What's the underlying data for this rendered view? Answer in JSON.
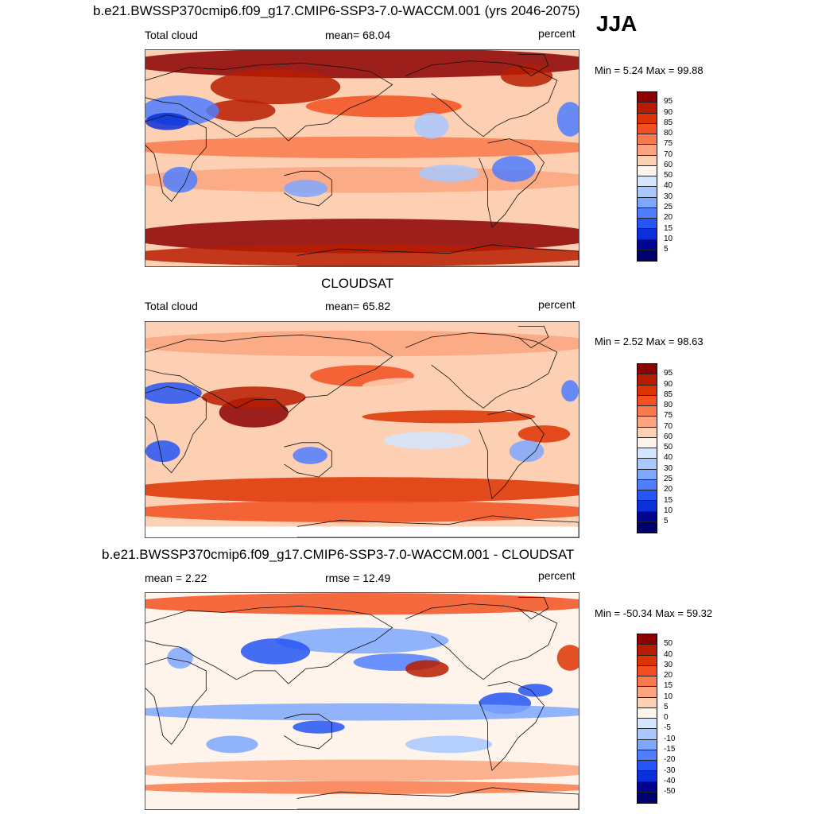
{
  "figure": {
    "season": "JJA",
    "units": "percent",
    "panels": [
      {
        "title": "b.e21.BWSSP370cmip6.f09_g17.CMIP6-SSP3-7.0-WACCM.001 (yrs 2046-2075)",
        "left_label": "Total cloud",
        "mid_label": "mean=  68.04",
        "right_label": "percent",
        "minmax": "Min =   5.24 Max =  99.88",
        "levels": [
          "95",
          "90",
          "85",
          "80",
          "75",
          "70",
          "60",
          "50",
          "40",
          "30",
          "25",
          "20",
          "15",
          "10",
          "5"
        ],
        "colors": [
          "#8b0000",
          "#b81c00",
          "#dd3300",
          "#f25020",
          "#f97a4c",
          "#fba47f",
          "#fdd0b4",
          "#fff4ec",
          "#d3e6ff",
          "#a8c8ff",
          "#7ea7ff",
          "#4f7eff",
          "#2455f5",
          "#0b2fd8",
          "#02068e",
          "#00006e"
        ],
        "cmap": "pos"
      },
      {
        "title": "CLOUDSAT",
        "left_label": "Total cloud",
        "mid_label": "mean=  65.82",
        "right_label": "percent",
        "minmax": "Min =   2.52 Max =  98.63",
        "levels": [
          "95",
          "90",
          "85",
          "80",
          "75",
          "70",
          "60",
          "50",
          "40",
          "30",
          "25",
          "20",
          "15",
          "10",
          "5"
        ],
        "colors": [
          "#8b0000",
          "#b81c00",
          "#dd3300",
          "#f25020",
          "#f97a4c",
          "#fba47f",
          "#fdd0b4",
          "#fff4ec",
          "#d3e6ff",
          "#a8c8ff",
          "#7ea7ff",
          "#4f7eff",
          "#2455f5",
          "#0b2fd8",
          "#02068e",
          "#00006e"
        ],
        "cmap": "pos"
      },
      {
        "title": "b.e21.BWSSP370cmip6.f09_g17.CMIP6-SSP3-7.0-WACCM.001 - CLOUDSAT",
        "left_label": "mean =   2.22",
        "mid_label": "rmse =  12.49",
        "right_label": "percent",
        "minmax": "Min = -50.34 Max =  59.32",
        "levels": [
          "50",
          "40",
          "30",
          "20",
          "15",
          "10",
          "5",
          "0",
          "-5",
          "-10",
          "-15",
          "-20",
          "-30",
          "-40",
          "-50"
        ],
        "colors": [
          "#8b0000",
          "#b81c00",
          "#dd3300",
          "#f25020",
          "#f97a4c",
          "#fba47f",
          "#fdd0b4",
          "#fff4ec",
          "#d3e6ff",
          "#a8c8ff",
          "#7ea7ff",
          "#4f7eff",
          "#2455f5",
          "#0b2fd8",
          "#02068e",
          "#00006e"
        ],
        "cmap": "diff"
      }
    ]
  }
}
